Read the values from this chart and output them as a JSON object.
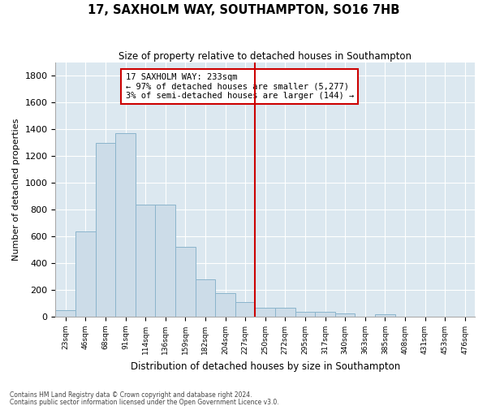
{
  "title": "17, SAXHOLM WAY, SOUTHAMPTON, SO16 7HB",
  "subtitle": "Size of property relative to detached houses in Southampton",
  "xlabel": "Distribution of detached houses by size in Southampton",
  "ylabel": "Number of detached properties",
  "bar_color": "#ccdce8",
  "bar_edge_color": "#8ab4cc",
  "background_color": "#dce8f0",
  "grid_color": "#ffffff",
  "annotation_box_color": "#cc0000",
  "vline_color": "#cc0000",
  "annotation_title": "17 SAXHOLM WAY: 233sqm",
  "annotation_line1": "← 97% of detached houses are smaller (5,277)",
  "annotation_line2": "3% of semi-detached houses are larger (144) →",
  "categories": [
    "23sqm",
    "46sqm",
    "68sqm",
    "91sqm",
    "114sqm",
    "136sqm",
    "159sqm",
    "182sqm",
    "204sqm",
    "227sqm",
    "250sqm",
    "272sqm",
    "295sqm",
    "317sqm",
    "340sqm",
    "363sqm",
    "385sqm",
    "408sqm",
    "431sqm",
    "453sqm",
    "476sqm"
  ],
  "values": [
    50,
    640,
    1300,
    1370,
    840,
    840,
    520,
    280,
    175,
    110,
    65,
    65,
    35,
    35,
    25,
    0,
    20,
    0,
    0,
    0,
    0
  ],
  "ylim": [
    0,
    1900
  ],
  "yticks": [
    0,
    200,
    400,
    600,
    800,
    1000,
    1200,
    1400,
    1600,
    1800
  ],
  "vline_x": 9.5,
  "footer1": "Contains HM Land Registry data © Crown copyright and database right 2024.",
  "footer2": "Contains public sector information licensed under the Open Government Licence v3.0."
}
